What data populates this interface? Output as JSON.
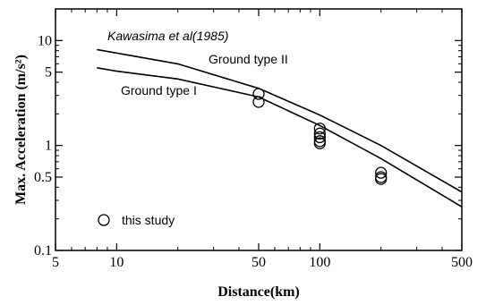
{
  "chart_data": {
    "type": "line",
    "title": "",
    "xlabel": "Distance(km)",
    "ylabel": "Max. Acceleration (m/s²)",
    "x_scale": "log",
    "y_scale": "log",
    "xlim": [
      5,
      500
    ],
    "ylim": [
      0.1,
      20
    ],
    "x_ticks": [
      5,
      10,
      50,
      100,
      500
    ],
    "y_ticks": [
      0.1,
      0.5,
      1,
      5,
      10
    ],
    "grid": false,
    "annotations": [
      "Kawasima et al(1985)"
    ],
    "series": [
      {
        "name": "Ground type II",
        "type": "line",
        "x": [
          8,
          10,
          20,
          50,
          100,
          200,
          500
        ],
        "y": [
          8.2,
          7.6,
          6.0,
          3.5,
          1.95,
          1.0,
          0.36
        ]
      },
      {
        "name": "Ground type I",
        "type": "line",
        "x": [
          8,
          10,
          20,
          50,
          100,
          200,
          500
        ],
        "y": [
          5.5,
          5.1,
          4.3,
          2.9,
          1.55,
          0.75,
          0.26
        ]
      },
      {
        "name": "this study",
        "type": "scatter",
        "x": [
          50,
          50,
          100,
          100,
          100,
          100,
          100,
          200,
          200,
          200
        ],
        "y": [
          3.1,
          2.6,
          1.45,
          1.3,
          1.2,
          1.1,
          1.05,
          0.55,
          0.5,
          0.48
        ]
      }
    ]
  }
}
